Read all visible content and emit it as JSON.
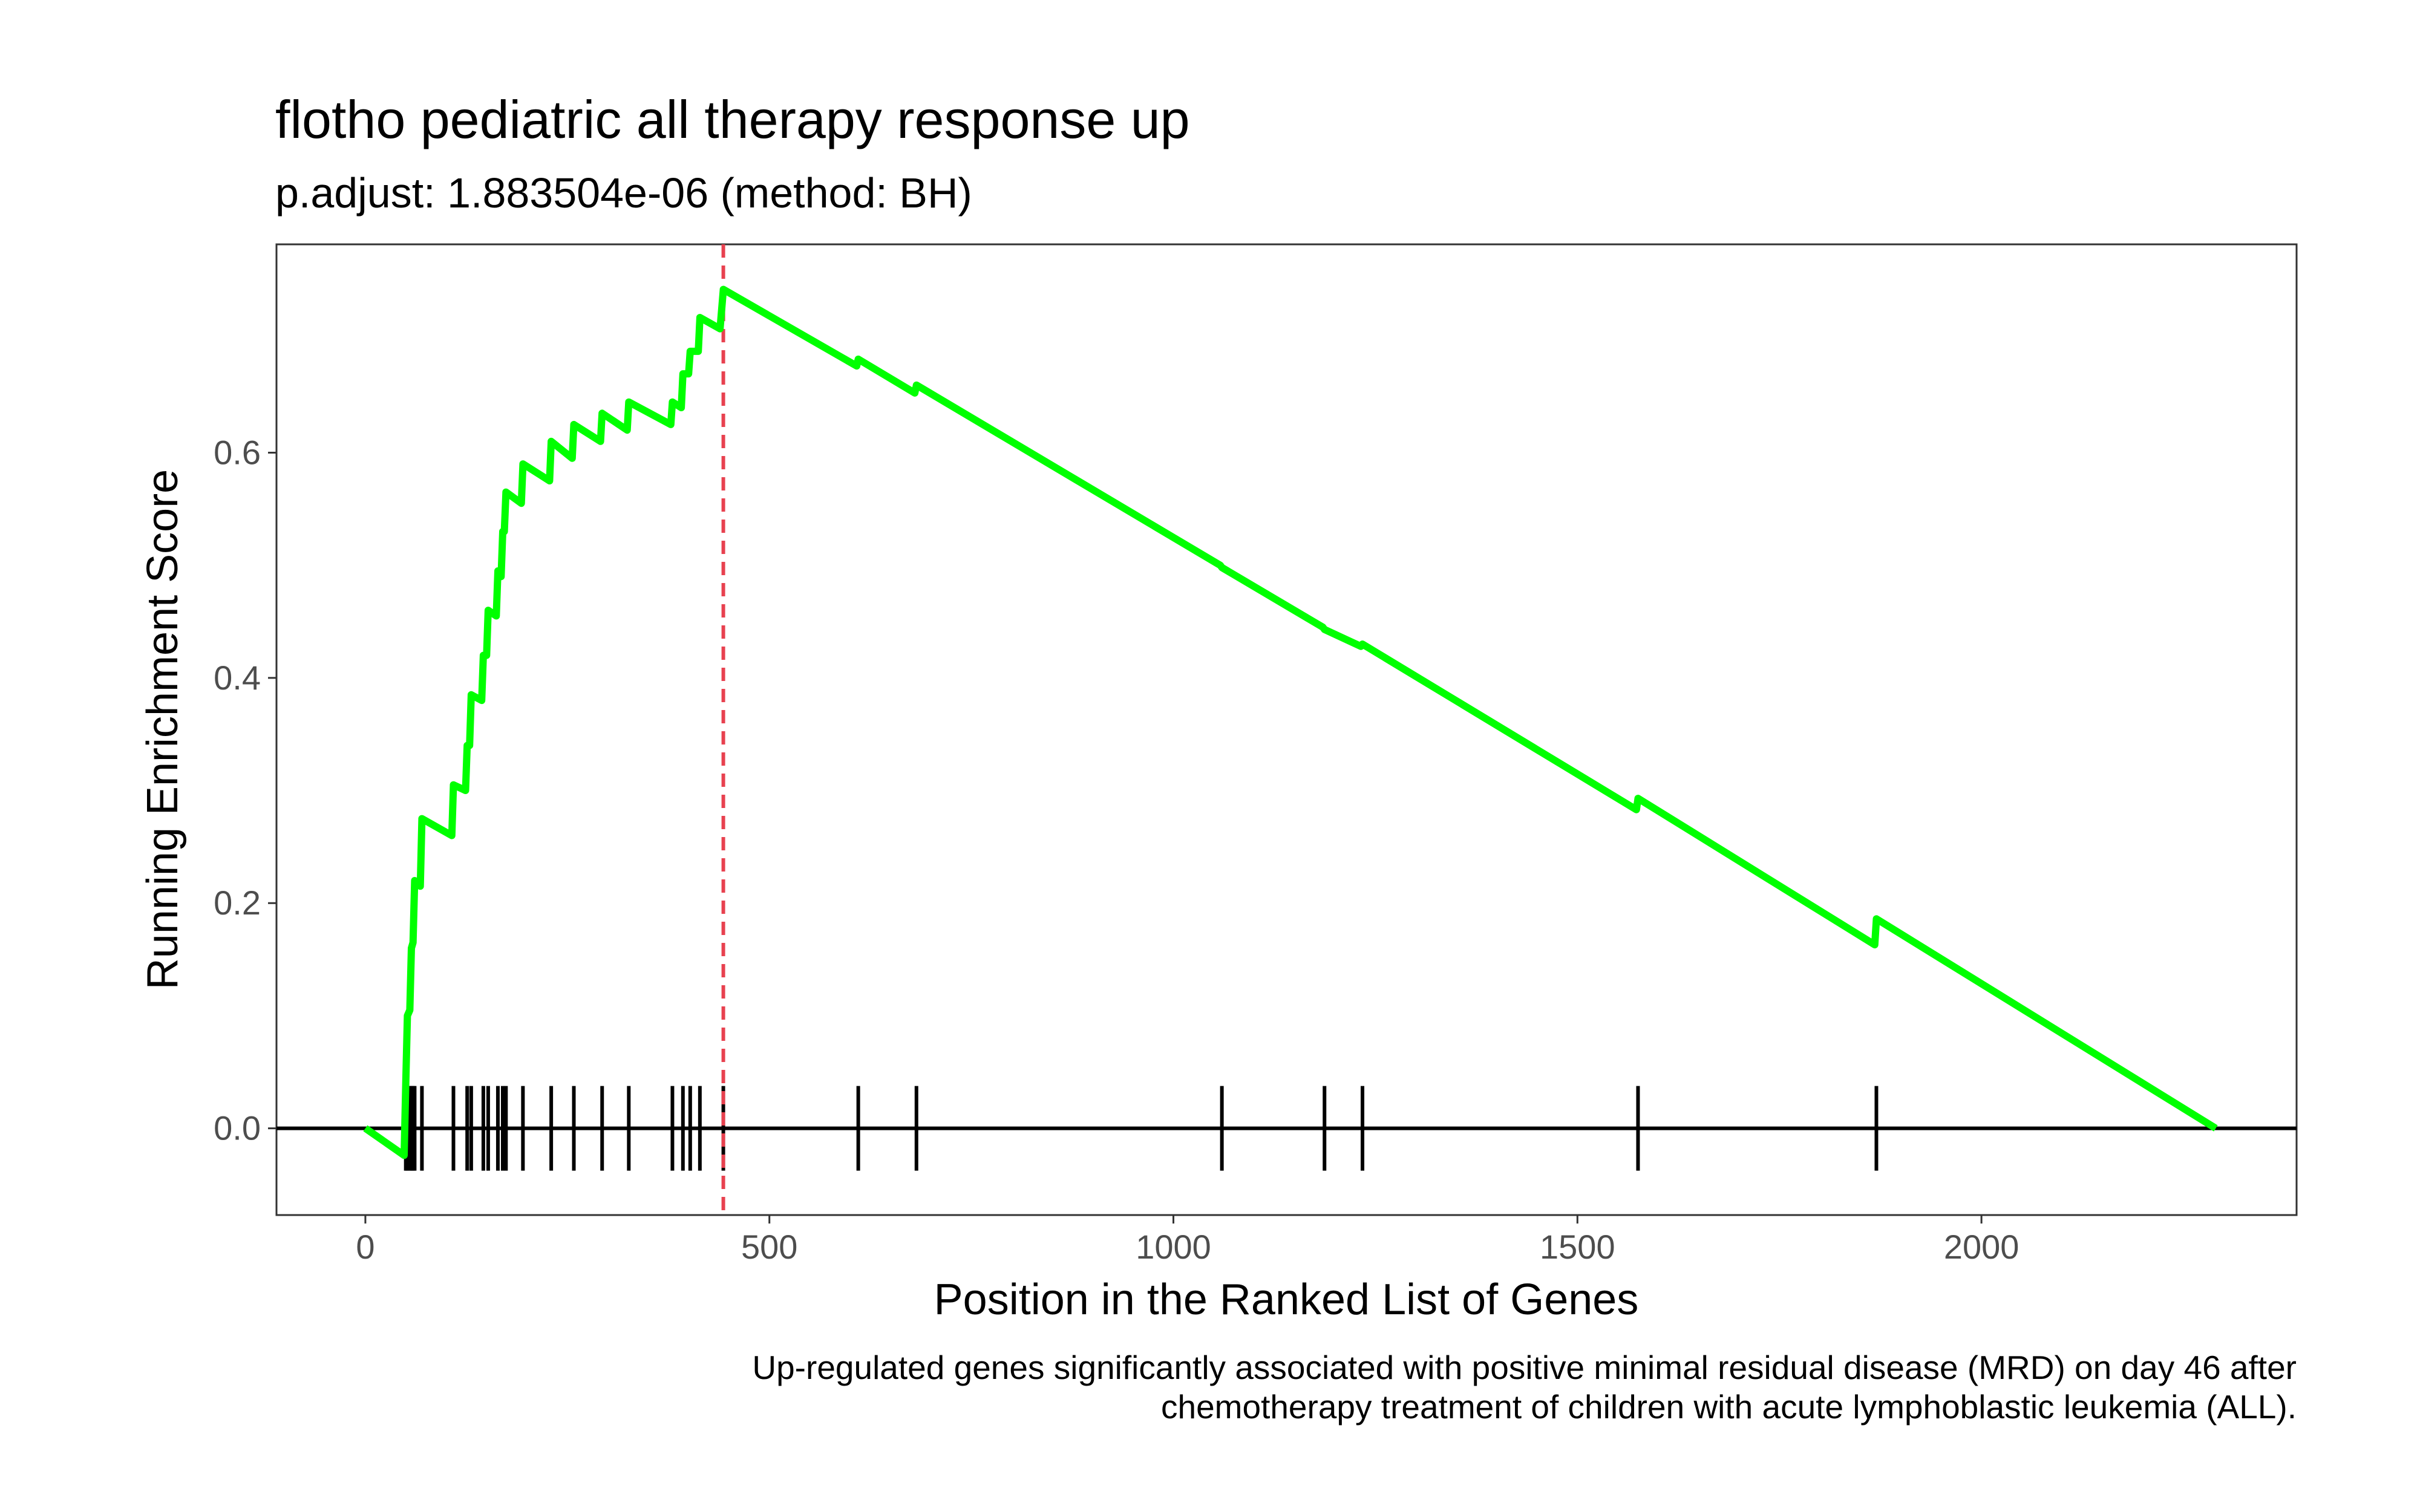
{
  "chart_data": {
    "type": "line",
    "title": "flotho pediatric all therapy response up",
    "subtitle": "p.adjust: 1.883504e-06 (method: BH)",
    "xlabel": "Position in the Ranked List of Genes",
    "ylabel": "Running Enrichment Score",
    "caption_lines": [
      "Up-regulated genes significantly associated with positive minimal residual disease (MRD) on day 46 after",
      "chemotherapy treatment of children with acute lymphoblastic leukemia (ALL)."
    ],
    "xlim": [
      -110,
      2390
    ],
    "ylim": [
      -0.077,
      0.785
    ],
    "x_ticks": [
      0,
      500,
      1000,
      1500,
      2000
    ],
    "x_tick_labels": [
      "0",
      "500",
      "1000",
      "1500",
      "2000"
    ],
    "y_ticks": [
      0.0,
      0.2,
      0.4,
      0.6
    ],
    "y_tick_labels": [
      "0.0",
      "0.2",
      "0.4",
      "0.6"
    ],
    "grid": false,
    "leading_edge_position": 443,
    "running_score": {
      "color": "#00ff00",
      "points": [
        [
          0,
          0.0
        ],
        [
          48,
          -0.024
        ],
        [
          50,
          0.04
        ],
        [
          52,
          0.1
        ],
        [
          55,
          0.105
        ],
        [
          57,
          0.16
        ],
        [
          59,
          0.165
        ],
        [
          61,
          0.22
        ],
        [
          68,
          0.215
        ],
        [
          70,
          0.275
        ],
        [
          107,
          0.26
        ],
        [
          109,
          0.305
        ],
        [
          124,
          0.3
        ],
        [
          126,
          0.34
        ],
        [
          129,
          0.34
        ],
        [
          131,
          0.385
        ],
        [
          144,
          0.38
        ],
        [
          146,
          0.42
        ],
        [
          150,
          0.42
        ],
        [
          152,
          0.46
        ],
        [
          162,
          0.455
        ],
        [
          164,
          0.495
        ],
        [
          168,
          0.49
        ],
        [
          170,
          0.53
        ],
        [
          172,
          0.53
        ],
        [
          174,
          0.565
        ],
        [
          193,
          0.555
        ],
        [
          195,
          0.59
        ],
        [
          228,
          0.575
        ],
        [
          230,
          0.61
        ],
        [
          256,
          0.595
        ],
        [
          258,
          0.625
        ],
        [
          291,
          0.61
        ],
        [
          293,
          0.635
        ],
        [
          324,
          0.62
        ],
        [
          326,
          0.645
        ],
        [
          378,
          0.625
        ],
        [
          380,
          0.645
        ],
        [
          391,
          0.64
        ],
        [
          393,
          0.67
        ],
        [
          400,
          0.67
        ],
        [
          402,
          0.69
        ],
        [
          412,
          0.69
        ],
        [
          414,
          0.72
        ],
        [
          439,
          0.71
        ],
        [
          443,
          0.745
        ],
        [
          608,
          0.677
        ],
        [
          610,
          0.683
        ],
        [
          680,
          0.653
        ],
        [
          682,
          0.66
        ],
        [
          1058,
          0.5
        ],
        [
          1060,
          0.498
        ],
        [
          1185,
          0.445
        ],
        [
          1187,
          0.443
        ],
        [
          1232,
          0.428
        ],
        [
          1234,
          0.43
        ],
        [
          1573,
          0.283
        ],
        [
          1575,
          0.293
        ],
        [
          1868,
          0.163
        ],
        [
          1870,
          0.186
        ],
        [
          2290,
          0.0
        ]
      ]
    },
    "gene_hits": [
      50,
      52,
      55,
      57,
      59,
      61,
      70,
      109,
      126,
      131,
      146,
      152,
      164,
      170,
      174,
      195,
      230,
      258,
      293,
      326,
      380,
      393,
      402,
      414,
      443,
      610,
      682,
      1060,
      1187,
      1234,
      1575,
      1870
    ],
    "colors": {
      "score_line": "#00ff00",
      "leading_edge_line": "#e8414f",
      "hit_marks": "#000000",
      "zero_line": "#000000",
      "panel_border": "#333333"
    }
  }
}
